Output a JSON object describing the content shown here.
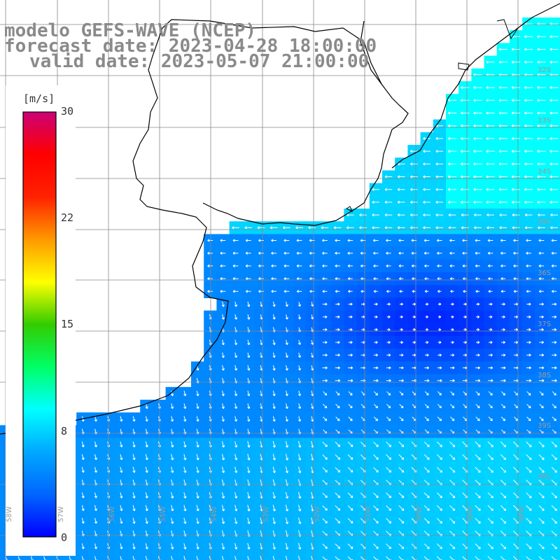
{
  "titles": {
    "model": "modelo GEFS-WAVE (NCEP)",
    "forecast": "forecast date: 2023-04-28 18:00:00",
    "valid": "valid date: 2023-05-07 21:00:00"
  },
  "colorbar": {
    "unit": "[m/s]",
    "ticks": [
      "30",
      "22",
      "15",
      "8",
      "0"
    ],
    "range": [
      0,
      30
    ],
    "colors": [
      "#0000ff",
      "#0066ff",
      "#00a8ff",
      "#00ffff",
      "#00ff66",
      "#33cc00",
      "#ffff00",
      "#ff9900",
      "#ff2200",
      "#ff0000",
      "#cc0077"
    ]
  },
  "map": {
    "land_color": "#ffffff",
    "lat_labels": [
      "32S",
      "33S",
      "34S",
      "35S",
      "36S",
      "37S",
      "38S",
      "39S",
      "40S"
    ],
    "lon_labels": [
      "58W",
      "57W",
      "56W",
      "55W",
      "54W",
      "53W",
      "52W",
      "51W",
      "50W",
      "49W",
      "48W"
    ],
    "arrow_color": "#ffffff"
  }
}
